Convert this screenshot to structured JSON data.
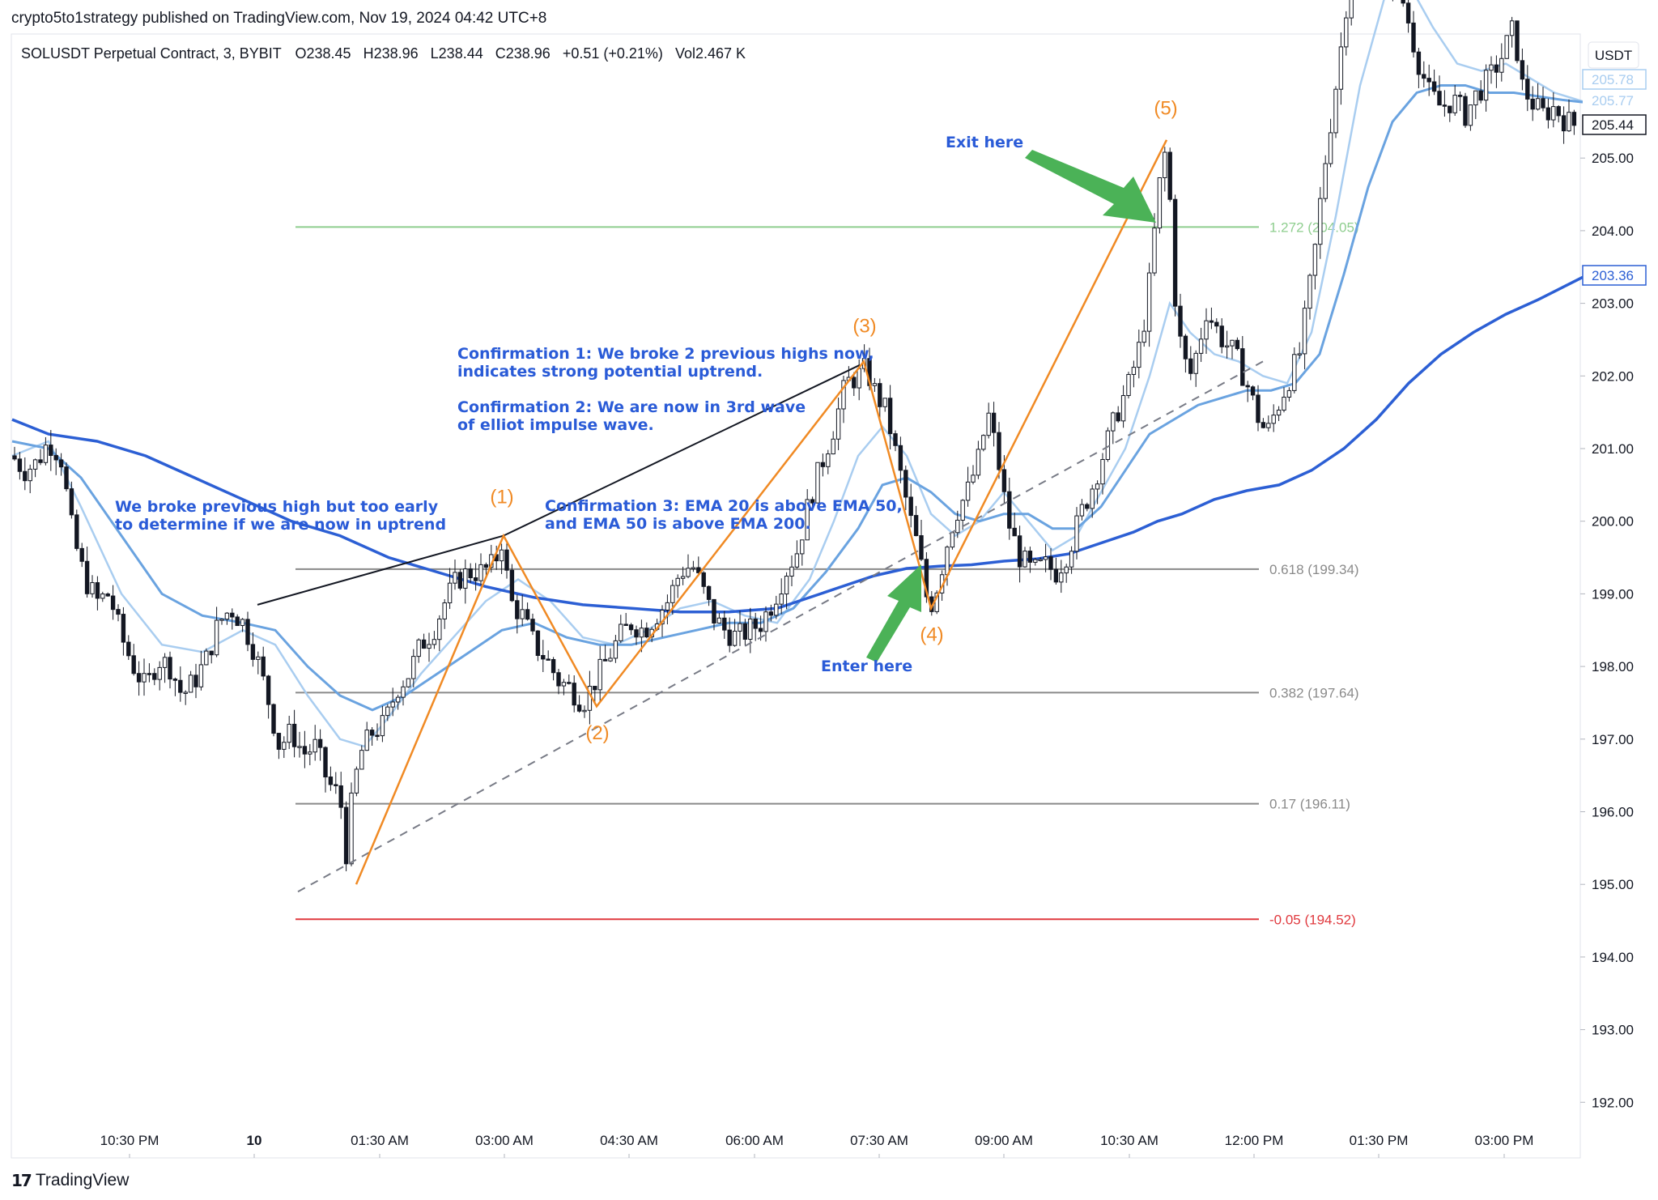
{
  "publisher_line": "crypto5to1strategy published on TradingView.com, Nov 19, 2024 04:42 UTC+8",
  "footer": {
    "logo_mark": "17",
    "logo_text": "TradingView"
  },
  "chart_data": {
    "type": "candlestick",
    "symbol_line": {
      "symbol": "SOLUSDT Perpetual Contract, 3, BYBIT",
      "open": "O238.45",
      "high": "H238.96",
      "low": "L238.44",
      "close": "C238.96",
      "change": "+0.51 (+0.21%)",
      "volume": "Vol2.467 K"
    },
    "currency": "USDT",
    "ylim": [
      191.5,
      207.6
    ],
    "y_ticks": [
      "192.00",
      "193.00",
      "194.00",
      "195.00",
      "196.00",
      "197.00",
      "198.00",
      "199.00",
      "200.00",
      "201.00",
      "202.00",
      "203.00",
      "204.00",
      "205.00"
    ],
    "x_ticks": [
      {
        "label": "10:30 PM",
        "bold": false
      },
      {
        "label": "10",
        "bold": true
      },
      {
        "label": "01:30 AM",
        "bold": false
      },
      {
        "label": "03:00 AM",
        "bold": false
      },
      {
        "label": "04:30 AM",
        "bold": false
      },
      {
        "label": "06:00 AM",
        "bold": false
      },
      {
        "label": "07:30 AM",
        "bold": false
      },
      {
        "label": "09:00 AM",
        "bold": false
      },
      {
        "label": "10:30 AM",
        "bold": false
      },
      {
        "label": "12:00 PM",
        "bold": false
      },
      {
        "label": "01:30 PM",
        "bold": false
      },
      {
        "label": "03:00 PM",
        "bold": false
      }
    ],
    "price_badges": [
      {
        "value": "205.78",
        "style": "ema20"
      },
      {
        "value": "205.77",
        "style": "ema50"
      },
      {
        "value": "205.44",
        "style": "last"
      },
      {
        "value": "203.36",
        "style": "ema200"
      }
    ],
    "fib_levels": [
      {
        "label": "1.272 (204.05)",
        "price": 204.05,
        "color": "#8fce8f"
      },
      {
        "label": "0.618 (199.34)",
        "price": 199.34,
        "color": "#8a8a8a"
      },
      {
        "label": "0.382 (197.64)",
        "price": 197.64,
        "color": "#8a8a8a"
      },
      {
        "label": "0.17 (196.11)",
        "price": 196.11,
        "color": "#8a8a8a"
      },
      {
        "label": "-0.05 (194.52)",
        "price": 194.52,
        "color": "#e0393e"
      }
    ],
    "price_path": [
      [
        0,
        200.5
      ],
      [
        15,
        200.9
      ],
      [
        30,
        200.7
      ],
      [
        45,
        200.8
      ],
      [
        60,
        201.1
      ],
      [
        75,
        200.9
      ],
      [
        90,
        199.8
      ],
      [
        105,
        199.2
      ],
      [
        120,
        198.9
      ],
      [
        135,
        199.0
      ],
      [
        150,
        198.4
      ],
      [
        165,
        198.0
      ],
      [
        180,
        197.7
      ],
      [
        195,
        198.1
      ],
      [
        210,
        198.0
      ],
      [
        225,
        197.6
      ],
      [
        240,
        197.8
      ],
      [
        255,
        198.1
      ],
      [
        270,
        198.6
      ],
      [
        285,
        198.8
      ],
      [
        300,
        198.6
      ],
      [
        315,
        198.2
      ],
      [
        330,
        197.6
      ],
      [
        345,
        196.9
      ],
      [
        360,
        197.1
      ],
      [
        375,
        196.8
      ],
      [
        390,
        196.9
      ],
      [
        405,
        196.4
      ],
      [
        420,
        196.2
      ],
      [
        428,
        195.4
      ],
      [
        435,
        196.2
      ],
      [
        445,
        196.8
      ],
      [
        460,
        197.1
      ],
      [
        475,
        197.2
      ],
      [
        490,
        197.7
      ],
      [
        505,
        197.9
      ],
      [
        520,
        198.3
      ],
      [
        535,
        198.5
      ],
      [
        550,
        198.9
      ],
      [
        565,
        199.2
      ],
      [
        580,
        199.3
      ],
      [
        595,
        199.3
      ],
      [
        610,
        199.4
      ],
      [
        620,
        199.75
      ],
      [
        630,
        198.9
      ],
      [
        645,
        198.7
      ],
      [
        660,
        198.3
      ],
      [
        675,
        198.1
      ],
      [
        690,
        197.8
      ],
      [
        705,
        197.7
      ],
      [
        720,
        197.5
      ],
      [
        735,
        197.8
      ],
      [
        750,
        198.1
      ],
      [
        765,
        198.4
      ],
      [
        780,
        198.6
      ],
      [
        795,
        198.5
      ],
      [
        810,
        198.7
      ],
      [
        825,
        198.9
      ],
      [
        840,
        199.3
      ],
      [
        855,
        199.4
      ],
      [
        870,
        199.0
      ],
      [
        880,
        198.7
      ],
      [
        895,
        198.5
      ],
      [
        910,
        198.4
      ],
      [
        925,
        198.5
      ],
      [
        940,
        198.6
      ],
      [
        955,
        198.9
      ],
      [
        970,
        199.3
      ],
      [
        985,
        199.6
      ],
      [
        1000,
        200.3
      ],
      [
        1015,
        200.8
      ],
      [
        1030,
        201.3
      ],
      [
        1045,
        201.9
      ],
      [
        1060,
        202.0
      ],
      [
        1070,
        202.1
      ],
      [
        1080,
        201.8
      ],
      [
        1095,
        201.5
      ],
      [
        1105,
        201.0
      ],
      [
        1115,
        200.5
      ],
      [
        1125,
        200.0
      ],
      [
        1135,
        199.6
      ],
      [
        1143,
        199.0
      ],
      [
        1150,
        198.85
      ],
      [
        1160,
        199.2
      ],
      [
        1170,
        199.7
      ],
      [
        1180,
        200.1
      ],
      [
        1195,
        200.4
      ],
      [
        1210,
        200.9
      ],
      [
        1220,
        201.5
      ],
      [
        1232,
        200.9
      ],
      [
        1245,
        200.0
      ],
      [
        1260,
        199.5
      ],
      [
        1275,
        199.3
      ],
      [
        1290,
        199.4
      ],
      [
        1305,
        199.3
      ],
      [
        1320,
        199.6
      ],
      [
        1335,
        200.1
      ],
      [
        1350,
        200.5
      ],
      [
        1365,
        201.0
      ],
      [
        1380,
        201.5
      ],
      [
        1395,
        201.9
      ],
      [
        1410,
        202.5
      ],
      [
        1420,
        203.3
      ],
      [
        1428,
        204.2
      ],
      [
        1435,
        204.9
      ],
      [
        1440,
        205.1
      ],
      [
        1446,
        204.3
      ],
      [
        1452,
        203.0
      ],
      [
        1460,
        202.3
      ],
      [
        1470,
        202.0
      ],
      [
        1480,
        202.4
      ],
      [
        1490,
        202.9
      ],
      [
        1500,
        202.7
      ],
      [
        1510,
        202.5
      ],
      [
        1525,
        202.3
      ],
      [
        1540,
        201.9
      ],
      [
        1555,
        201.4
      ],
      [
        1565,
        201.2
      ],
      [
        1575,
        201.5
      ],
      [
        1590,
        201.9
      ],
      [
        1605,
        202.3
      ],
      [
        1615,
        203.0
      ],
      [
        1625,
        203.8
      ],
      [
        1635,
        204.8
      ],
      [
        1645,
        205.6
      ],
      [
        1655,
        206.4
      ],
      [
        1665,
        207.3
      ],
      [
        1675,
        207.8
      ],
      [
        1690,
        207.9
      ],
      [
        1705,
        207.7
      ],
      [
        1720,
        207.5
      ],
      [
        1735,
        207.1
      ],
      [
        1750,
        206.4
      ],
      [
        1765,
        205.9
      ],
      [
        1780,
        205.7
      ],
      [
        1795,
        205.8
      ],
      [
        1810,
        205.6
      ],
      [
        1825,
        205.9
      ],
      [
        1840,
        206.1
      ],
      [
        1855,
        206.4
      ],
      [
        1870,
        206.8
      ],
      [
        1880,
        206.0
      ],
      [
        1890,
        205.8
      ],
      [
        1905,
        205.6
      ],
      [
        1920,
        205.7
      ],
      [
        1935,
        205.5
      ],
      [
        1950,
        205.44
      ]
    ],
    "wave_path": [
      [
        440,
        195.0
      ],
      [
        622,
        199.8
      ],
      [
        737,
        197.45
      ],
      [
        1067,
        202.2
      ],
      [
        1150,
        198.8
      ],
      [
        1441,
        205.25
      ]
    ],
    "wave_labels": [
      {
        "text": "(1)",
        "x": 620,
        "price": 200.25
      },
      {
        "text": "(2)",
        "x": 738,
        "price": 197.0
      },
      {
        "text": "(3)",
        "x": 1068,
        "price": 202.6
      },
      {
        "text": "(4)",
        "x": 1151,
        "price": 198.35
      },
      {
        "text": "(5)",
        "x": 1440,
        "price": 205.6
      }
    ],
    "high_trendline": [
      [
        318,
        198.85
      ],
      [
        622,
        199.8
      ],
      [
        1062,
        202.15
      ]
    ],
    "dashed_trendline": [
      [
        368,
        194.9
      ],
      [
        1560,
        202.2
      ]
    ],
    "ema20": [
      [
        15,
        200.9
      ],
      [
        60,
        201.1
      ],
      [
        100,
        200.2
      ],
      [
        150,
        199.0
      ],
      [
        200,
        198.3
      ],
      [
        250,
        198.2
      ],
      [
        300,
        198.5
      ],
      [
        340,
        198.3
      ],
      [
        380,
        197.6
      ],
      [
        420,
        197.0
      ],
      [
        450,
        196.9
      ],
      [
        480,
        197.3
      ],
      [
        520,
        197.9
      ],
      [
        560,
        198.4
      ],
      [
        600,
        198.9
      ],
      [
        640,
        199.2
      ],
      [
        680,
        198.9
      ],
      [
        720,
        198.4
      ],
      [
        760,
        198.3
      ],
      [
        800,
        198.5
      ],
      [
        840,
        198.8
      ],
      [
        880,
        198.9
      ],
      [
        920,
        198.7
      ],
      [
        960,
        198.6
      ],
      [
        1000,
        199.2
      ],
      [
        1030,
        200.0
      ],
      [
        1060,
        200.9
      ],
      [
        1090,
        201.3
      ],
      [
        1120,
        200.9
      ],
      [
        1150,
        200.1
      ],
      [
        1180,
        199.8
      ],
      [
        1210,
        200.0
      ],
      [
        1240,
        200.4
      ],
      [
        1270,
        200.0
      ],
      [
        1300,
        199.6
      ],
      [
        1330,
        199.8
      ],
      [
        1360,
        200.4
      ],
      [
        1390,
        201.0
      ],
      [
        1420,
        202.0
      ],
      [
        1445,
        203.0
      ],
      [
        1470,
        202.6
      ],
      [
        1500,
        202.3
      ],
      [
        1530,
        202.2
      ],
      [
        1560,
        202.0
      ],
      [
        1590,
        201.9
      ],
      [
        1620,
        202.6
      ],
      [
        1650,
        204.2
      ],
      [
        1680,
        206.0
      ],
      [
        1710,
        207.2
      ],
      [
        1740,
        207.4
      ],
      [
        1770,
        206.8
      ],
      [
        1800,
        206.3
      ],
      [
        1830,
        206.2
      ],
      [
        1860,
        206.3
      ],
      [
        1890,
        206.1
      ],
      [
        1920,
        205.9
      ],
      [
        1955,
        205.78
      ]
    ],
    "ema50": [
      [
        15,
        201.1
      ],
      [
        60,
        201.0
      ],
      [
        100,
        200.6
      ],
      [
        150,
        199.8
      ],
      [
        200,
        199.0
      ],
      [
        250,
        198.7
      ],
      [
        300,
        198.6
      ],
      [
        340,
        198.5
      ],
      [
        380,
        198.0
      ],
      [
        420,
        197.6
      ],
      [
        460,
        197.4
      ],
      [
        500,
        197.6
      ],
      [
        540,
        197.9
      ],
      [
        580,
        198.2
      ],
      [
        620,
        198.5
      ],
      [
        660,
        198.6
      ],
      [
        700,
        198.4
      ],
      [
        740,
        198.3
      ],
      [
        780,
        198.3
      ],
      [
        820,
        198.4
      ],
      [
        860,
        198.5
      ],
      [
        900,
        198.6
      ],
      [
        940,
        198.6
      ],
      [
        980,
        198.8
      ],
      [
        1020,
        199.3
      ],
      [
        1060,
        199.9
      ],
      [
        1090,
        200.5
      ],
      [
        1120,
        200.6
      ],
      [
        1150,
        200.4
      ],
      [
        1180,
        200.1
      ],
      [
        1210,
        200.0
      ],
      [
        1240,
        200.1
      ],
      [
        1270,
        200.1
      ],
      [
        1300,
        199.9
      ],
      [
        1330,
        199.9
      ],
      [
        1360,
        200.2
      ],
      [
        1390,
        200.7
      ],
      [
        1420,
        201.2
      ],
      [
        1450,
        201.4
      ],
      [
        1480,
        201.6
      ],
      [
        1510,
        201.7
      ],
      [
        1540,
        201.8
      ],
      [
        1570,
        201.8
      ],
      [
        1600,
        201.9
      ],
      [
        1630,
        202.3
      ],
      [
        1660,
        203.4
      ],
      [
        1690,
        204.6
      ],
      [
        1720,
        205.5
      ],
      [
        1750,
        205.9
      ],
      [
        1780,
        206.0
      ],
      [
        1810,
        206.0
      ],
      [
        1840,
        205.9
      ],
      [
        1870,
        205.9
      ],
      [
        1900,
        205.85
      ],
      [
        1930,
        205.8
      ],
      [
        1955,
        205.77
      ]
    ],
    "ema200": [
      [
        15,
        201.4
      ],
      [
        60,
        201.2
      ],
      [
        120,
        201.1
      ],
      [
        180,
        200.9
      ],
      [
        240,
        200.6
      ],
      [
        300,
        200.3
      ],
      [
        360,
        200.0
      ],
      [
        420,
        199.8
      ],
      [
        480,
        199.5
      ],
      [
        540,
        199.3
      ],
      [
        600,
        199.1
      ],
      [
        660,
        198.95
      ],
      [
        720,
        198.85
      ],
      [
        780,
        198.8
      ],
      [
        840,
        198.75
      ],
      [
        900,
        198.75
      ],
      [
        960,
        198.8
      ],
      [
        1000,
        198.95
      ],
      [
        1040,
        199.1
      ],
      [
        1080,
        199.25
      ],
      [
        1120,
        199.35
      ],
      [
        1160,
        199.38
      ],
      [
        1200,
        199.4
      ],
      [
        1240,
        199.45
      ],
      [
        1280,
        199.48
      ],
      [
        1320,
        199.55
      ],
      [
        1360,
        199.7
      ],
      [
        1400,
        199.85
      ],
      [
        1430,
        200.0
      ],
      [
        1460,
        200.1
      ],
      [
        1500,
        200.3
      ],
      [
        1540,
        200.42
      ],
      [
        1580,
        200.5
      ],
      [
        1620,
        200.7
      ],
      [
        1660,
        201.0
      ],
      [
        1700,
        201.4
      ],
      [
        1740,
        201.9
      ],
      [
        1780,
        202.3
      ],
      [
        1820,
        202.6
      ],
      [
        1860,
        202.85
      ],
      [
        1900,
        203.05
      ],
      [
        1955,
        203.36
      ]
    ],
    "annotations": [
      {
        "lines": [
          "We broke previous high but too early",
          "to determine if we are now in uptrend"
        ],
        "x": 142,
        "y": 632
      },
      {
        "lines": [
          "Confirmation 1: We broke 2 previous highs now,",
          "indicates strong potential uptrend."
        ],
        "x": 565,
        "y": 443
      },
      {
        "lines": [
          "Confirmation 2: We are now in 3rd wave",
          "of elliot impulse wave."
        ],
        "x": 565,
        "y": 509
      },
      {
        "lines": [
          "Confirmation 3: EMA 20 is above EMA 50,",
          "and EMA 50 is above EMA 200."
        ],
        "x": 673,
        "y": 631
      },
      {
        "lines": [
          "Exit here"
        ],
        "x": 1168,
        "y": 182
      },
      {
        "lines": [
          "Enter here"
        ],
        "x": 1014,
        "y": 829
      }
    ]
  }
}
